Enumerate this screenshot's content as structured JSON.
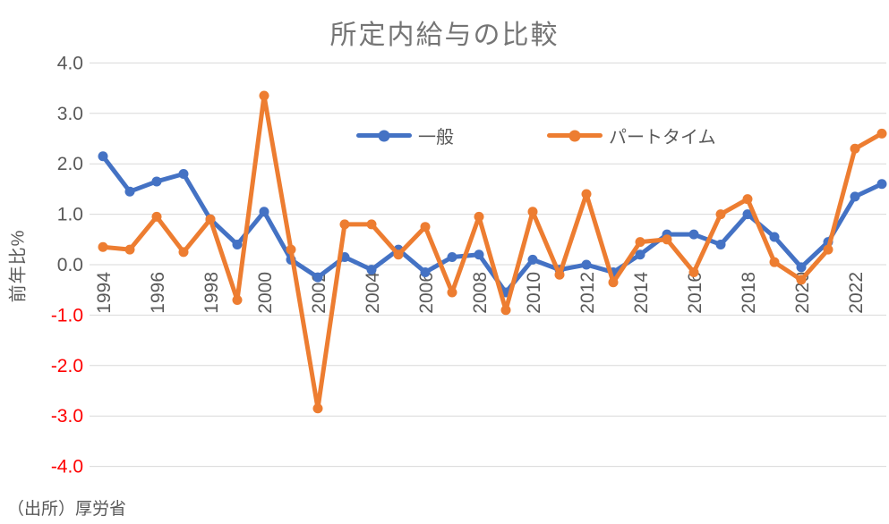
{
  "source_note": "（出所）厚労省",
  "chart_data": {
    "type": "line",
    "title": "所定内給与の比較",
    "ylabel": "前年比%",
    "ylim": [
      -4.0,
      4.0
    ],
    "ytick_step": 1.0,
    "grid": true,
    "legend_position": "top-inside",
    "x": [
      1994,
      1995,
      1996,
      1997,
      1998,
      1999,
      2000,
      2001,
      2002,
      2003,
      2004,
      2005,
      2006,
      2007,
      2008,
      2009,
      2010,
      2011,
      2012,
      2013,
      2014,
      2015,
      2016,
      2017,
      2018,
      2019,
      2020,
      2021,
      2022,
      2023
    ],
    "xtick_labels": [
      "1994",
      "1996",
      "1998",
      "2000",
      "2002",
      "2004",
      "2006",
      "2008",
      "2010",
      "2012",
      "2014",
      "2016",
      "2018",
      "2020",
      "2022"
    ],
    "series": [
      {
        "name": "一般",
        "color": "#4472C4",
        "values": [
          2.15,
          1.45,
          1.65,
          1.8,
          0.9,
          0.4,
          1.05,
          0.1,
          -0.25,
          0.15,
          -0.1,
          0.3,
          -0.15,
          0.15,
          0.2,
          -0.55,
          0.1,
          -0.1,
          0.0,
          -0.15,
          0.2,
          0.6,
          0.6,
          0.4,
          1.0,
          0.55,
          -0.05,
          0.45,
          1.35,
          1.6
        ]
      },
      {
        "name": "パートタイム",
        "color": "#ED7D31",
        "values": [
          0.35,
          0.3,
          0.95,
          0.25,
          0.9,
          -0.7,
          3.35,
          0.3,
          -2.85,
          0.8,
          0.8,
          0.2,
          0.75,
          -0.55,
          0.95,
          -0.9,
          1.05,
          -0.2,
          1.4,
          -0.35,
          0.45,
          0.5,
          -0.15,
          1.0,
          1.3,
          0.05,
          -0.3,
          0.3,
          2.3,
          2.6
        ]
      }
    ],
    "colors": {
      "gridline": "#D9D9D9",
      "tick_label": "#595959",
      "negative_tick_label": "#FF0000",
      "title": "#757575"
    }
  }
}
